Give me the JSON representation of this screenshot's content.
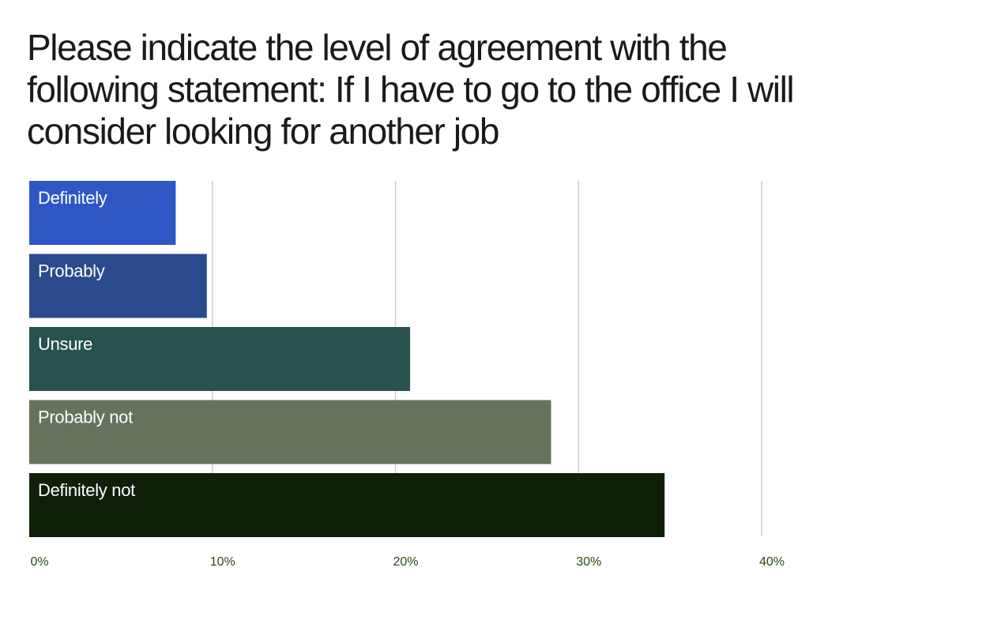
{
  "chart_data": {
    "type": "bar",
    "orientation": "horizontal",
    "title": "Please indicate the level of agreement with the following statement: If I have to go to the office I will consider looking for another job",
    "categories": [
      "Definitely",
      "Probably",
      "Unsure",
      "Probably not",
      "Definitely not"
    ],
    "values": [
      8.0,
      9.7,
      20.8,
      28.5,
      34.7
    ],
    "unit": "%",
    "xlim": [
      0,
      40
    ],
    "xticks": [
      0,
      10,
      20,
      30,
      40
    ],
    "xtick_labels": [
      "0%",
      "10%",
      "20%",
      "30%",
      "40%"
    ],
    "bar_colors": [
      "#2e57c4",
      "#2b4a8c",
      "#27524e",
      "#66735c",
      "#0f1f08"
    ],
    "label_color": "#ffffff",
    "grid": true,
    "legend": "none",
    "colors": {
      "grid": "#d0d0d0",
      "tick_text": "#2b4a10",
      "title_text": "#1a1a1a"
    }
  }
}
